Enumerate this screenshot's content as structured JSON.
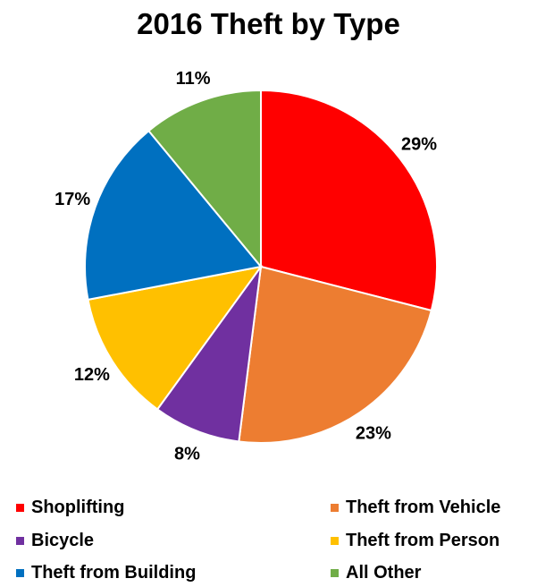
{
  "chart_data": {
    "type": "pie",
    "title": "2016 Theft by Type",
    "categories": [
      "Shoplifting",
      "Theft from Vehicle",
      "Bicycle",
      "Theft from Person",
      "Theft from Building",
      "All Other"
    ],
    "values": [
      29,
      23,
      8,
      12,
      17,
      11
    ],
    "labels": [
      "29%",
      "23%",
      "8%",
      "12%",
      "17%",
      "11%"
    ],
    "colors": [
      "#ff0000",
      "#ed7d31",
      "#7030a0",
      "#ffc000",
      "#0070c0",
      "#70ad47"
    ],
    "legend_position": "bottom"
  }
}
